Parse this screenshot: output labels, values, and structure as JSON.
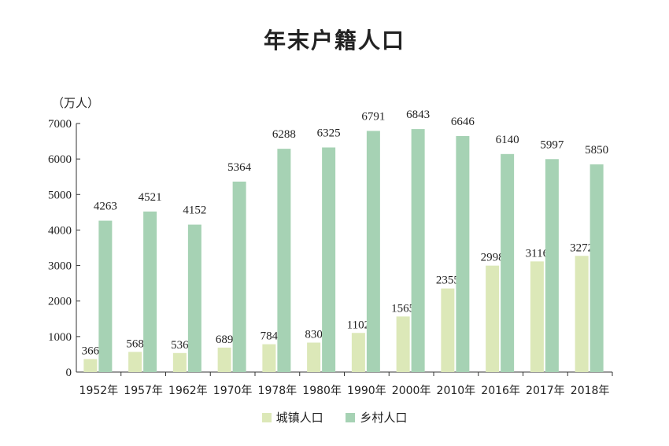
{
  "chart_data": {
    "type": "bar",
    "title": "年末户籍人口",
    "unit_label": "（万人）",
    "categories": [
      "1952年",
      "1957年",
      "1962年",
      "1970年",
      "1978年",
      "1980年",
      "1990年",
      "2000年",
      "2010年",
      "2016年",
      "2017年",
      "2018年"
    ],
    "series": [
      {
        "name": "城镇人口",
        "color": "#dce8b8",
        "values": [
          366,
          568,
          536,
          689,
          784,
          830,
          1102,
          1565,
          2355,
          2998,
          3116,
          3272
        ]
      },
      {
        "name": "乡村人口",
        "color": "#a6d2b4",
        "values": [
          4263,
          4521,
          4152,
          5364,
          6288,
          6325,
          6791,
          6843,
          6646,
          6140,
          5997,
          5850
        ]
      }
    ],
    "ylim": [
      0,
      7000
    ],
    "yticks": [
      0,
      1000,
      2000,
      3000,
      4000,
      5000,
      6000,
      7000
    ],
    "legend_position": "bottom",
    "grid": false
  }
}
